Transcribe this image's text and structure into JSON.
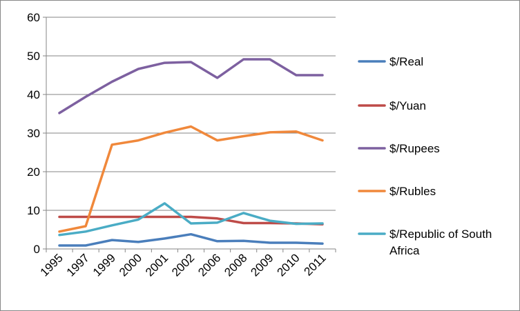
{
  "chart_data": {
    "type": "line",
    "categories": [
      "1995",
      "1997",
      "1999",
      "2000",
      "2001",
      "2002",
      "2006",
      "2008",
      "2009",
      "2010",
      "2011"
    ],
    "ylim": [
      0,
      60
    ],
    "yticks": [
      0,
      10,
      20,
      30,
      40,
      50,
      60
    ],
    "grid": "horizontal",
    "legend_position": "right",
    "series": [
      {
        "name": "$/Real",
        "color": "#4A7EBB",
        "values": [
          0.9,
          0.9,
          2.3,
          1.8,
          2.7,
          3.8,
          2.0,
          2.1,
          1.6,
          1.6,
          1.4
        ]
      },
      {
        "name": "$/Yuan",
        "color": "#BE4B48",
        "values": [
          8.3,
          8.3,
          8.3,
          8.3,
          8.3,
          8.3,
          7.9,
          6.7,
          6.7,
          6.6,
          6.4
        ]
      },
      {
        "name": "$/Rupees",
        "color": "#7D60A0",
        "values": [
          35.2,
          39.4,
          43.3,
          46.6,
          48.2,
          48.4,
          44.3,
          49.1,
          49.1,
          45.0,
          45.0
        ]
      },
      {
        "name": "$/Rubles",
        "color": "#F0883B",
        "values": [
          4.5,
          5.9,
          27.0,
          28.1,
          30.1,
          31.7,
          28.1,
          29.2,
          30.2,
          30.4,
          28.1
        ]
      },
      {
        "name": "$/Republic of South Africa",
        "color": "#4AACC5",
        "values": [
          3.6,
          4.5,
          6.1,
          7.6,
          11.8,
          6.6,
          6.8,
          9.3,
          7.3,
          6.5,
          6.6
        ]
      }
    ]
  }
}
